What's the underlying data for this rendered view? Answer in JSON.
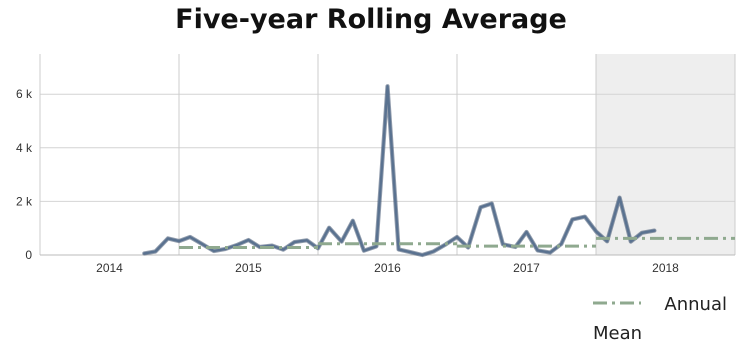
{
  "chart_data": {
    "type": "line",
    "title": "Five-year Rolling Average",
    "xlabel": "",
    "ylabel": "",
    "x_categories": [
      "2014",
      "2015",
      "2016",
      "2017",
      "2018"
    ],
    "ylim": [
      0,
      7500
    ],
    "y_ticks": [
      0,
      2000,
      4000,
      6000
    ],
    "y_tick_labels": [
      "0",
      "2 k",
      "4 k",
      "6 k"
    ],
    "highlight_band": {
      "category": "2018",
      "color": "#eeeeee"
    },
    "grid": true,
    "series": [
      {
        "color": "#5a7290",
        "style": "solid",
        "points": [
          [
            2014.75,
            60
          ],
          [
            2014.83,
            130
          ],
          [
            2014.92,
            620
          ],
          [
            2015.0,
            520
          ],
          [
            2015.08,
            670
          ],
          [
            2015.17,
            400
          ],
          [
            2015.25,
            150
          ],
          [
            2015.33,
            220
          ],
          [
            2015.42,
            380
          ],
          [
            2015.5,
            560
          ],
          [
            2015.58,
            300
          ],
          [
            2015.67,
            350
          ],
          [
            2015.75,
            200
          ],
          [
            2015.83,
            480
          ],
          [
            2015.92,
            550
          ],
          [
            2016.0,
            250
          ],
          [
            2016.08,
            1020
          ],
          [
            2016.17,
            500
          ],
          [
            2016.25,
            1280
          ],
          [
            2016.33,
            160
          ],
          [
            2016.42,
            320
          ],
          [
            2016.5,
            6300
          ],
          [
            2016.58,
            210
          ],
          [
            2016.67,
            100
          ],
          [
            2016.75,
            0
          ],
          [
            2016.83,
            130
          ],
          [
            2016.92,
            400
          ],
          [
            2017.0,
            670
          ],
          [
            2017.08,
            280
          ],
          [
            2017.17,
            1780
          ],
          [
            2017.25,
            1920
          ],
          [
            2017.33,
            400
          ],
          [
            2017.42,
            300
          ],
          [
            2017.5,
            860
          ],
          [
            2017.58,
            170
          ],
          [
            2017.67,
            90
          ],
          [
            2017.75,
            410
          ],
          [
            2017.83,
            1330
          ],
          [
            2017.92,
            1430
          ],
          [
            2018.0,
            880
          ],
          [
            2018.08,
            510
          ],
          [
            2018.17,
            2140
          ],
          [
            2018.25,
            500
          ],
          [
            2018.33,
            830
          ],
          [
            2018.42,
            910
          ]
        ]
      },
      {
        "name": "Annual Mean",
        "color": "#8fa98f",
        "style": "dash-dot",
        "segments": [
          {
            "category": "2015",
            "value": 280
          },
          {
            "category": "2016",
            "value": 420
          },
          {
            "category": "2017",
            "value": 330
          },
          {
            "category": "2018",
            "value": 620
          }
        ]
      }
    ],
    "legend": {
      "placement": "bottom-right",
      "label": "Annual Mean"
    }
  }
}
